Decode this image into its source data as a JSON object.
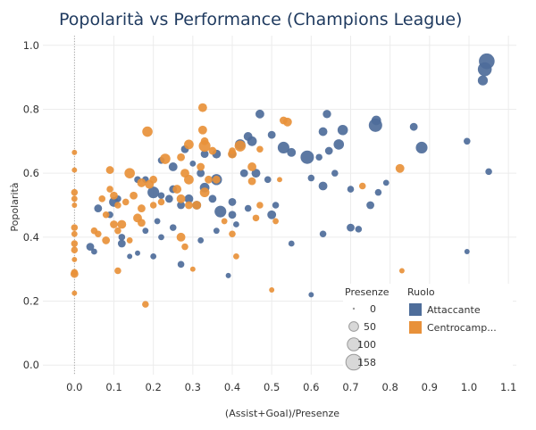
{
  "chart_data": {
    "type": "scatter",
    "title": "Popolarità vs Performance (Champions League)",
    "xlabel": "(Assist+Goal)/Presenze",
    "ylabel": "Popolarità",
    "xlim": [
      -0.08,
      1.12
    ],
    "ylim": [
      -0.03,
      1.03
    ],
    "x_ticks": [
      "0.0",
      "0.1",
      "0.2",
      "0.3",
      "0.4",
      "0.5",
      "0.6",
      "0.7",
      "0.8",
      "0.9",
      "1.0",
      "1.1"
    ],
    "y_ticks": [
      "0.0",
      "0.2",
      "0.4",
      "0.6",
      "0.8",
      "1.0"
    ],
    "grid": true,
    "legend_position": "bottom-right",
    "size_legend": {
      "title": "Presenze",
      "entries": [
        {
          "label": "0",
          "value": 0
        },
        {
          "label": "50",
          "value": 50
        },
        {
          "label": "100",
          "value": 100
        },
        {
          "label": "158",
          "value": 158
        }
      ]
    },
    "color_legend": {
      "title": "Ruolo",
      "entries": [
        {
          "label": "Attaccante",
          "color": "#4e6d9a"
        },
        {
          "label": "Centrocamp...",
          "color": "#e8913a"
        }
      ]
    },
    "series": [
      {
        "name": "Attaccante",
        "color": "#4e6d9a",
        "points": [
          [
            1.045,
            0.95,
            158
          ],
          [
            1.04,
            0.925,
            120
          ],
          [
            1.035,
            0.89,
            55
          ],
          [
            0.765,
            0.765,
            50
          ],
          [
            0.763,
            0.75,
            110
          ],
          [
            0.68,
            0.735,
            60
          ],
          [
            0.64,
            0.785,
            35
          ],
          [
            0.63,
            0.73,
            40
          ],
          [
            0.67,
            0.69,
            60
          ],
          [
            0.47,
            0.785,
            40
          ],
          [
            0.53,
            0.68,
            80
          ],
          [
            0.55,
            0.665,
            40
          ],
          [
            0.59,
            0.65,
            110
          ],
          [
            0.62,
            0.65,
            20
          ],
          [
            0.645,
            0.67,
            30
          ],
          [
            0.88,
            0.68,
            80
          ],
          [
            0.995,
            0.7,
            20
          ],
          [
            1.05,
            0.605,
            20
          ],
          [
            0.86,
            0.745,
            30
          ],
          [
            0.44,
            0.715,
            40
          ],
          [
            0.45,
            0.7,
            50
          ],
          [
            0.42,
            0.69,
            60
          ],
          [
            0.5,
            0.72,
            30
          ],
          [
            0.4,
            0.66,
            30
          ],
          [
            0.36,
            0.66,
            40
          ],
          [
            0.33,
            0.66,
            30
          ],
          [
            0.28,
            0.675,
            30
          ],
          [
            0.25,
            0.62,
            40
          ],
          [
            0.22,
            0.64,
            20
          ],
          [
            0.3,
            0.63,
            15
          ],
          [
            0.36,
            0.58,
            70
          ],
          [
            0.33,
            0.555,
            50
          ],
          [
            0.32,
            0.6,
            30
          ],
          [
            0.2,
            0.54,
            80
          ],
          [
            0.25,
            0.55,
            30
          ],
          [
            0.22,
            0.53,
            20
          ],
          [
            0.24,
            0.52,
            30
          ],
          [
            0.18,
            0.58,
            20
          ],
          [
            0.16,
            0.58,
            20
          ],
          [
            0.1,
            0.51,
            50
          ],
          [
            0.06,
            0.49,
            30
          ],
          [
            0.09,
            0.47,
            20
          ],
          [
            0.11,
            0.52,
            20
          ],
          [
            0.27,
            0.5,
            30
          ],
          [
            0.29,
            0.52,
            40
          ],
          [
            0.31,
            0.5,
            40
          ],
          [
            0.35,
            0.52,
            30
          ],
          [
            0.37,
            0.48,
            80
          ],
          [
            0.4,
            0.51,
            30
          ],
          [
            0.4,
            0.47,
            30
          ],
          [
            0.44,
            0.49,
            20
          ],
          [
            0.43,
            0.6,
            30
          ],
          [
            0.46,
            0.6,
            40
          ],
          [
            0.49,
            0.58,
            20
          ],
          [
            0.51,
            0.5,
            20
          ],
          [
            0.5,
            0.47,
            40
          ],
          [
            0.63,
            0.56,
            40
          ],
          [
            0.6,
            0.585,
            20
          ],
          [
            0.66,
            0.6,
            20
          ],
          [
            0.7,
            0.55,
            20
          ],
          [
            0.75,
            0.5,
            30
          ],
          [
            0.77,
            0.54,
            20
          ],
          [
            0.79,
            0.57,
            15
          ],
          [
            0.7,
            0.43,
            30
          ],
          [
            0.72,
            0.425,
            20
          ],
          [
            0.63,
            0.41,
            20
          ],
          [
            0.55,
            0.38,
            15
          ],
          [
            0.41,
            0.44,
            15
          ],
          [
            0.36,
            0.42,
            15
          ],
          [
            0.32,
            0.39,
            15
          ],
          [
            0.25,
            0.43,
            20
          ],
          [
            0.22,
            0.4,
            15
          ],
          [
            0.18,
            0.42,
            15
          ],
          [
            0.21,
            0.45,
            15
          ],
          [
            0.12,
            0.4,
            20
          ],
          [
            0.12,
            0.38,
            30
          ],
          [
            0.04,
            0.37,
            30
          ],
          [
            0.05,
            0.355,
            15
          ],
          [
            0.14,
            0.34,
            10
          ],
          [
            0.16,
            0.35,
            10
          ],
          [
            0.2,
            0.34,
            15
          ],
          [
            0.27,
            0.315,
            20
          ],
          [
            0.39,
            0.28,
            10
          ],
          [
            0.6,
            0.22,
            10
          ],
          [
            0.995,
            0.355,
            10
          ]
        ]
      },
      {
        "name": "Centrocampista",
        "color": "#e8913a",
        "points": [
          [
            0.325,
            0.805,
            40
          ],
          [
            0.185,
            0.73,
            60
          ],
          [
            0.325,
            0.735,
            40
          ],
          [
            0.33,
            0.7,
            30
          ],
          [
            0.29,
            0.69,
            50
          ],
          [
            0.33,
            0.685,
            80
          ],
          [
            0.42,
            0.685,
            70
          ],
          [
            0.53,
            0.765,
            30
          ],
          [
            0.54,
            0.76,
            40
          ],
          [
            0.4,
            0.67,
            20
          ],
          [
            0.35,
            0.67,
            30
          ],
          [
            0.47,
            0.675,
            20
          ],
          [
            0.23,
            0.645,
            60
          ],
          [
            0.27,
            0.65,
            30
          ],
          [
            0.4,
            0.66,
            40
          ],
          [
            0.45,
            0.62,
            40
          ],
          [
            0.32,
            0.62,
            30
          ],
          [
            0.28,
            0.6,
            40
          ],
          [
            0.29,
            0.58,
            50
          ],
          [
            0.34,
            0.58,
            30
          ],
          [
            0.36,
            0.58,
            30
          ],
          [
            0.2,
            0.58,
            30
          ],
          [
            0.14,
            0.6,
            60
          ],
          [
            0.17,
            0.57,
            40
          ],
          [
            0.19,
            0.565,
            40
          ],
          [
            0.26,
            0.55,
            40
          ],
          [
            0.27,
            0.52,
            40
          ],
          [
            0.33,
            0.54,
            50
          ],
          [
            0.09,
            0.55,
            20
          ],
          [
            0.1,
            0.53,
            30
          ],
          [
            0.07,
            0.52,
            20
          ],
          [
            0.13,
            0.51,
            20
          ],
          [
            0.15,
            0.53,
            30
          ],
          [
            0.17,
            0.49,
            30
          ],
          [
            0.2,
            0.5,
            20
          ],
          [
            0.22,
            0.51,
            20
          ],
          [
            0.31,
            0.5,
            40
          ],
          [
            0.29,
            0.5,
            30
          ],
          [
            0.11,
            0.5,
            20
          ],
          [
            0.08,
            0.47,
            20
          ],
          [
            0.16,
            0.46,
            40
          ],
          [
            0.17,
            0.445,
            30
          ],
          [
            0.1,
            0.44,
            30
          ],
          [
            0.12,
            0.44,
            40
          ],
          [
            0.11,
            0.42,
            20
          ],
          [
            0.14,
            0.39,
            15
          ],
          [
            0.08,
            0.39,
            30
          ],
          [
            0.06,
            0.41,
            20
          ],
          [
            0.05,
            0.42,
            20
          ],
          [
            0.27,
            0.4,
            40
          ],
          [
            0.28,
            0.37,
            20
          ],
          [
            0.4,
            0.41,
            20
          ],
          [
            0.41,
            0.34,
            15
          ],
          [
            0.3,
            0.3,
            10
          ],
          [
            0.0,
            0.54,
            20
          ],
          [
            0.0,
            0.52,
            15
          ],
          [
            0.0,
            0.5,
            10
          ],
          [
            0.0,
            0.43,
            20
          ],
          [
            0.0,
            0.41,
            15
          ],
          [
            0.0,
            0.38,
            20
          ],
          [
            0.0,
            0.36,
            20
          ],
          [
            0.0,
            0.33,
            10
          ],
          [
            0.0,
            0.29,
            20
          ],
          [
            0.0,
            0.285,
            30
          ],
          [
            0.0,
            0.225,
            10
          ],
          [
            0.0,
            0.61,
            10
          ],
          [
            0.0,
            0.665,
            10
          ],
          [
            0.09,
            0.61,
            30
          ],
          [
            0.11,
            0.295,
            20
          ],
          [
            0.18,
            0.19,
            20
          ],
          [
            0.45,
            0.575,
            30
          ],
          [
            0.52,
            0.58,
            10
          ],
          [
            0.47,
            0.5,
            20
          ],
          [
            0.51,
            0.45,
            15
          ],
          [
            0.46,
            0.46,
            20
          ],
          [
            0.5,
            0.235,
            10
          ],
          [
            0.73,
            0.56,
            20
          ],
          [
            0.825,
            0.615,
            40
          ],
          [
            0.83,
            0.295,
            10
          ],
          [
            0.38,
            0.45,
            15
          ]
        ]
      }
    ]
  }
}
